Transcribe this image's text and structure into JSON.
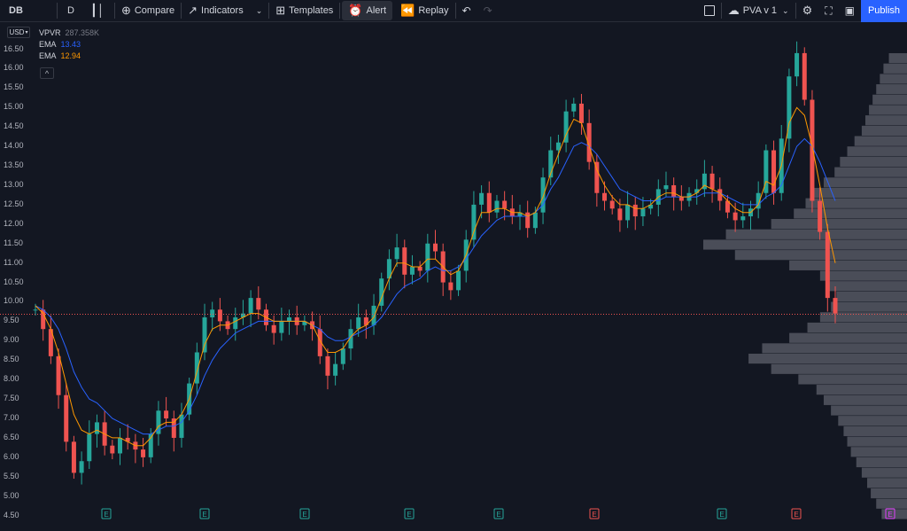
{
  "toolbar": {
    "symbol": "DB",
    "interval": "D",
    "compare_label": "Compare",
    "indicators_label": "Indicators",
    "templates_label": "Templates",
    "alert_label": "Alert",
    "replay_label": "Replay",
    "layout_name": "PVA v 1",
    "publish_label": "Publish"
  },
  "legend": {
    "vpvr_name": "VPVR",
    "vpvr_value": "287.358K",
    "ema1_name": "EMA",
    "ema1_value": "13.43",
    "ema1_color": "#2962ff",
    "ema2_name": "EMA",
    "ema2_value": "12.94",
    "ema2_color": "#ff9800",
    "collapse_symbol": "^"
  },
  "currency": "USD",
  "price_scale": [
    "16.50",
    "16.00",
    "15.50",
    "15.00",
    "14.50",
    "14.00",
    "13.50",
    "13.00",
    "12.50",
    "12.00",
    "11.50",
    "11.00",
    "10.50",
    "10.00",
    "9.50",
    "9.00",
    "8.50",
    "8.00",
    "7.50",
    "7.00",
    "6.50",
    "6.00",
    "5.50",
    "5.00",
    "4.50"
  ],
  "colors": {
    "background": "#131722",
    "up": "#26a69a",
    "down": "#ef5350",
    "ema_fast": "#ff9800",
    "ema_slow": "#2962ff",
    "volume_profile": "#5d606b",
    "price_line": "#ef5350",
    "earnings_green": "#26a69a",
    "earnings_red": "#ef5350",
    "dividend": "#e040fb"
  },
  "chart_data": {
    "type": "candlestick",
    "ylim": [
      4.4,
      16.9
    ],
    "last_price": 9.68,
    "closes": [
      9.8,
      9.3,
      8.6,
      7.6,
      6.4,
      5.6,
      5.9,
      6.6,
      6.9,
      6.3,
      6.1,
      6.5,
      6.4,
      6.2,
      6.0,
      6.6,
      7.2,
      7.0,
      6.5,
      7.1,
      7.9,
      8.7,
      9.6,
      9.8,
      9.5,
      9.3,
      9.6,
      9.7,
      10.1,
      9.8,
      9.4,
      9.2,
      9.5,
      9.6,
      9.4,
      9.5,
      9.3,
      8.6,
      8.1,
      8.4,
      8.8,
      9.3,
      9.6,
      9.4,
      9.9,
      10.6,
      11.1,
      11.4,
      10.7,
      10.9,
      10.8,
      11.5,
      11.3,
      10.5,
      10.3,
      10.8,
      11.6,
      12.5,
      12.8,
      12.3,
      12.6,
      12.4,
      12.2,
      12.3,
      11.9,
      12.3,
      13.2,
      13.9,
      14.1,
      14.9,
      15.1,
      14.6,
      13.6,
      12.8,
      12.6,
      12.4,
      12.1,
      12.5,
      12.2,
      12.4,
      12.5,
      12.9,
      13.0,
      12.7,
      12.6,
      12.8,
      12.9,
      13.3,
      12.9,
      12.6,
      12.3,
      12.1,
      12.2,
      12.4,
      12.8,
      13.9,
      12.8,
      14.2,
      15.8,
      16.4,
      15.2,
      12.6,
      11.8,
      10.1,
      9.7
    ],
    "ema_fast": [
      9.9,
      9.7,
      9.3,
      8.7,
      7.9,
      7.1,
      6.7,
      6.6,
      6.7,
      6.6,
      6.5,
      6.5,
      6.4,
      6.3,
      6.3,
      6.5,
      6.8,
      6.9,
      6.9,
      7.1,
      7.5,
      8.2,
      8.9,
      9.3,
      9.4,
      9.4,
      9.5,
      9.6,
      9.7,
      9.7,
      9.6,
      9.5,
      9.5,
      9.5,
      9.5,
      9.5,
      9.4,
      9.0,
      8.7,
      8.7,
      8.8,
      9.1,
      9.3,
      9.4,
      9.6,
      10.1,
      10.6,
      11.0,
      11.0,
      10.9,
      10.9,
      11.1,
      11.1,
      10.9,
      10.7,
      10.8,
      11.2,
      11.8,
      12.3,
      12.3,
      12.4,
      12.4,
      12.3,
      12.3,
      12.2,
      12.3,
      12.7,
      13.3,
      13.8,
      14.3,
      14.7,
      14.6,
      14.0,
      13.4,
      13.0,
      12.7,
      12.5,
      12.5,
      12.4,
      12.4,
      12.5,
      12.7,
      12.8,
      12.8,
      12.7,
      12.7,
      12.8,
      13.0,
      12.9,
      12.8,
      12.6,
      12.4,
      12.3,
      12.3,
      12.5,
      13.1,
      13.0,
      13.5,
      14.6,
      15.0,
      14.8,
      14.0,
      13.0,
      11.9,
      11.0
    ],
    "ema_slow": [
      9.9,
      9.8,
      9.6,
      9.3,
      8.8,
      8.2,
      7.8,
      7.5,
      7.4,
      7.2,
      7.0,
      6.9,
      6.8,
      6.7,
      6.6,
      6.6,
      6.7,
      6.8,
      6.8,
      6.9,
      7.2,
      7.6,
      8.1,
      8.5,
      8.8,
      9.0,
      9.2,
      9.3,
      9.4,
      9.5,
      9.5,
      9.5,
      9.5,
      9.5,
      9.5,
      9.5,
      9.4,
      9.3,
      9.1,
      9.0,
      9.0,
      9.1,
      9.2,
      9.3,
      9.4,
      9.6,
      9.9,
      10.2,
      10.4,
      10.5,
      10.6,
      10.8,
      10.9,
      10.8,
      10.8,
      10.9,
      11.1,
      11.4,
      11.7,
      11.9,
      12.1,
      12.2,
      12.2,
      12.2,
      12.2,
      12.3,
      12.5,
      12.9,
      13.2,
      13.6,
      14.0,
      14.1,
      14.0,
      13.8,
      13.5,
      13.2,
      12.9,
      12.8,
      12.7,
      12.6,
      12.6,
      12.6,
      12.7,
      12.7,
      12.7,
      12.7,
      12.7,
      12.8,
      12.8,
      12.8,
      12.7,
      12.6,
      12.5,
      12.5,
      12.5,
      12.7,
      12.8,
      13.0,
      13.5,
      14.0,
      14.2,
      14.0,
      13.6,
      13.1,
      12.6
    ],
    "volume_profile": [
      20,
      26,
      30,
      34,
      38,
      42,
      46,
      50,
      58,
      66,
      74,
      80,
      92,
      104,
      112,
      125,
      150,
      200,
      225,
      190,
      130,
      96,
      86,
      78,
      84,
      96,
      110,
      130,
      160,
      175,
      150,
      120,
      100,
      92,
      84,
      76,
      70,
      66,
      62,
      56,
      50,
      44,
      40,
      34,
      28
    ],
    "earnings_markers": [
      "E",
      "E",
      "E",
      "E",
      "E",
      "E",
      "E",
      "E",
      "E"
    ],
    "earnings_types": [
      "green",
      "green",
      "green",
      "green",
      "green",
      "red",
      "green",
      "red",
      "purple"
    ]
  }
}
